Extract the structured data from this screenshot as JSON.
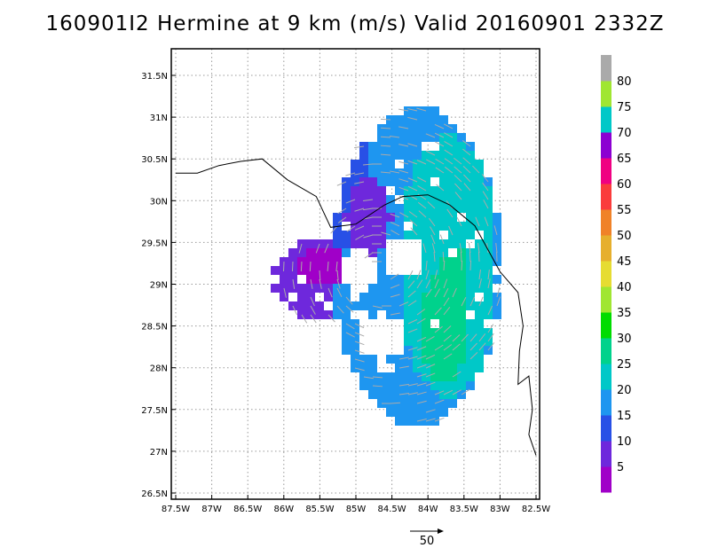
{
  "title": "160901I2 Hermine at 9 km (m/s) Valid 20160901 2332Z",
  "map": {
    "lon_range": [
      -87.5,
      -82.5
    ],
    "lat_range": [
      26.5,
      31.75
    ],
    "x_tick_labels": [
      "87.5W",
      "87W",
      "86.5W",
      "86W",
      "85.5W",
      "85W",
      "84.5W",
      "84W",
      "83.5W",
      "83W",
      "82.5W"
    ],
    "y_tick_labels": [
      "26.5N",
      "27N",
      "27.5N",
      "28N",
      "28.5N",
      "29N",
      "29.5N",
      "30N",
      "30.5N",
      "31N",
      "31.5N"
    ],
    "grid": "dotted"
  },
  "colorbar": {
    "labels": [
      "5",
      "10",
      "15",
      "20",
      "25",
      "30",
      "35",
      "40",
      "45",
      "50",
      "55",
      "60",
      "65",
      "70",
      "75",
      "80"
    ],
    "colors": [
      "#a000c8",
      "#6e28dc",
      "#2850e6",
      "#1e96f0",
      "#00c8c8",
      "#00d28c",
      "#00dc00",
      "#a0e632",
      "#e6dc32",
      "#e6af2d",
      "#f08228",
      "#fa3c3c",
      "#f00082",
      "#8c00d2",
      "#00c8c8",
      "#a0e632",
      "#aaaaaa"
    ]
  },
  "vector_reference": {
    "label": "50"
  },
  "icons": {
    "reference_arrow": "reference-arrow-icon"
  }
}
